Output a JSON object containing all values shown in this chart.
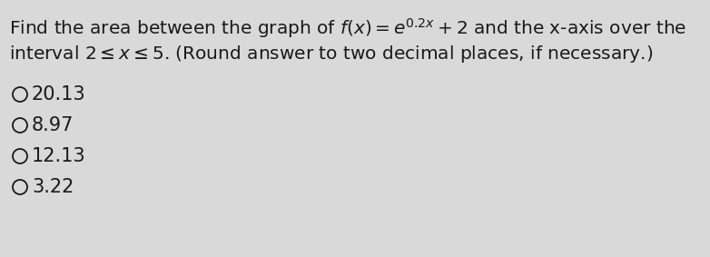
{
  "line1": "Find the area between the graph of $f\\left(x\\right) = e^{0.2x} + 2$ and the x-axis over the",
  "line2": "interval $2 \\leq x \\leq 5$. (Round answer to two decimal places, if necessary.)",
  "choices": [
    "20.13",
    "8.97",
    "12.13",
    "3.22"
  ],
  "bg_color": "#d9d9d9",
  "text_color": "#1a1a1a",
  "font_size_body": 14.5,
  "font_size_choices": 15,
  "figwidth": 7.82,
  "figheight": 2.83
}
